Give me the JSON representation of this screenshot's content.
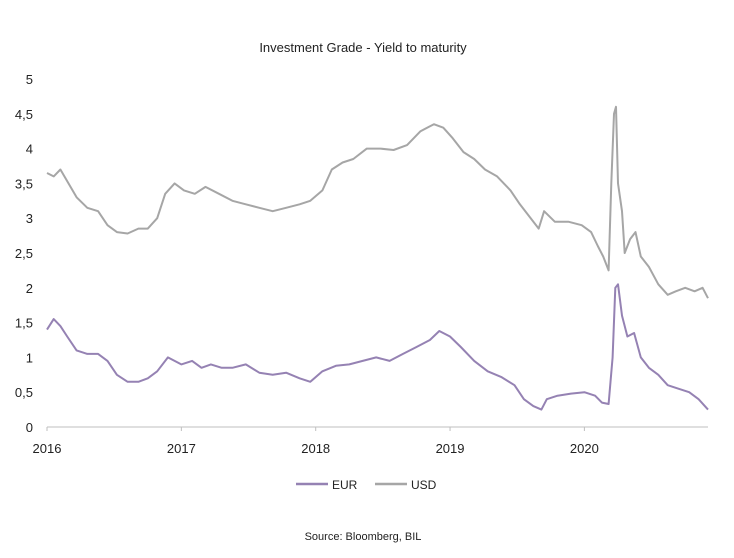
{
  "chart_data": {
    "type": "line",
    "title": "Investment Grade - Yield to maturity",
    "xlabel": "",
    "ylabel": "",
    "source": "Source: Bloomberg, BIL",
    "ylim": [
      0,
      5
    ],
    "xlim": [
      2016.0,
      2020.92
    ],
    "y_ticks": [
      "0",
      "0,5",
      "1",
      "1,5",
      "2",
      "2,5",
      "3",
      "3,5",
      "4",
      "4,5",
      "5"
    ],
    "x_ticks": [
      "2016",
      "2017",
      "2018",
      "2019",
      "2020"
    ],
    "grid": false,
    "legend": "bottom",
    "series": [
      {
        "name": "EUR",
        "color": "#9582b3",
        "points": [
          [
            2016.0,
            1.4
          ],
          [
            2016.05,
            1.55
          ],
          [
            2016.1,
            1.45
          ],
          [
            2016.15,
            1.3
          ],
          [
            2016.22,
            1.1
          ],
          [
            2016.3,
            1.05
          ],
          [
            2016.38,
            1.05
          ],
          [
            2016.45,
            0.95
          ],
          [
            2016.52,
            0.75
          ],
          [
            2016.6,
            0.65
          ],
          [
            2016.68,
            0.65
          ],
          [
            2016.75,
            0.7
          ],
          [
            2016.82,
            0.8
          ],
          [
            2016.9,
            1.0
          ],
          [
            2017.0,
            0.9
          ],
          [
            2017.08,
            0.95
          ],
          [
            2017.15,
            0.85
          ],
          [
            2017.22,
            0.9
          ],
          [
            2017.3,
            0.85
          ],
          [
            2017.38,
            0.85
          ],
          [
            2017.48,
            0.9
          ],
          [
            2017.58,
            0.78
          ],
          [
            2017.68,
            0.75
          ],
          [
            2017.78,
            0.78
          ],
          [
            2017.88,
            0.7
          ],
          [
            2017.96,
            0.65
          ],
          [
            2018.05,
            0.8
          ],
          [
            2018.15,
            0.88
          ],
          [
            2018.25,
            0.9
          ],
          [
            2018.35,
            0.95
          ],
          [
            2018.45,
            1.0
          ],
          [
            2018.55,
            0.95
          ],
          [
            2018.65,
            1.05
          ],
          [
            2018.75,
            1.15
          ],
          [
            2018.85,
            1.25
          ],
          [
            2018.92,
            1.38
          ],
          [
            2019.0,
            1.3
          ],
          [
            2019.08,
            1.15
          ],
          [
            2019.18,
            0.95
          ],
          [
            2019.28,
            0.8
          ],
          [
            2019.38,
            0.72
          ],
          [
            2019.48,
            0.6
          ],
          [
            2019.55,
            0.4
          ],
          [
            2019.62,
            0.3
          ],
          [
            2019.68,
            0.25
          ],
          [
            2019.72,
            0.4
          ],
          [
            2019.8,
            0.45
          ],
          [
            2019.9,
            0.48
          ],
          [
            2020.0,
            0.5
          ],
          [
            2020.08,
            0.45
          ],
          [
            2020.13,
            0.35
          ],
          [
            2020.18,
            0.33
          ],
          [
            2020.21,
            1.0
          ],
          [
            2020.23,
            2.0
          ],
          [
            2020.25,
            2.05
          ],
          [
            2020.28,
            1.6
          ],
          [
            2020.32,
            1.3
          ],
          [
            2020.37,
            1.35
          ],
          [
            2020.42,
            1.0
          ],
          [
            2020.48,
            0.85
          ],
          [
            2020.55,
            0.75
          ],
          [
            2020.62,
            0.6
          ],
          [
            2020.7,
            0.55
          ],
          [
            2020.78,
            0.5
          ],
          [
            2020.85,
            0.4
          ],
          [
            2020.92,
            0.25
          ]
        ]
      },
      {
        "name": "USD",
        "color": "#a6a6a6",
        "points": [
          [
            2016.0,
            3.65
          ],
          [
            2016.05,
            3.6
          ],
          [
            2016.1,
            3.7
          ],
          [
            2016.16,
            3.5
          ],
          [
            2016.22,
            3.3
          ],
          [
            2016.3,
            3.15
          ],
          [
            2016.38,
            3.1
          ],
          [
            2016.45,
            2.9
          ],
          [
            2016.52,
            2.8
          ],
          [
            2016.6,
            2.78
          ],
          [
            2016.68,
            2.85
          ],
          [
            2016.75,
            2.85
          ],
          [
            2016.82,
            3.0
          ],
          [
            2016.88,
            3.35
          ],
          [
            2016.95,
            3.5
          ],
          [
            2017.02,
            3.4
          ],
          [
            2017.1,
            3.35
          ],
          [
            2017.18,
            3.45
          ],
          [
            2017.28,
            3.35
          ],
          [
            2017.38,
            3.25
          ],
          [
            2017.48,
            3.2
          ],
          [
            2017.58,
            3.15
          ],
          [
            2017.68,
            3.1
          ],
          [
            2017.78,
            3.15
          ],
          [
            2017.88,
            3.2
          ],
          [
            2017.96,
            3.25
          ],
          [
            2018.05,
            3.4
          ],
          [
            2018.12,
            3.7
          ],
          [
            2018.2,
            3.8
          ],
          [
            2018.28,
            3.85
          ],
          [
            2018.38,
            4.0
          ],
          [
            2018.48,
            4.0
          ],
          [
            2018.58,
            3.98
          ],
          [
            2018.68,
            4.05
          ],
          [
            2018.78,
            4.25
          ],
          [
            2018.88,
            4.35
          ],
          [
            2018.95,
            4.3
          ],
          [
            2019.02,
            4.15
          ],
          [
            2019.1,
            3.95
          ],
          [
            2019.18,
            3.85
          ],
          [
            2019.26,
            3.7
          ],
          [
            2019.35,
            3.6
          ],
          [
            2019.45,
            3.4
          ],
          [
            2019.52,
            3.2
          ],
          [
            2019.6,
            3.0
          ],
          [
            2019.66,
            2.85
          ],
          [
            2019.7,
            3.1
          ],
          [
            2019.78,
            2.95
          ],
          [
            2019.88,
            2.95
          ],
          [
            2019.98,
            2.9
          ],
          [
            2020.05,
            2.8
          ],
          [
            2020.1,
            2.6
          ],
          [
            2020.14,
            2.45
          ],
          [
            2020.18,
            2.25
          ],
          [
            2020.2,
            3.5
          ],
          [
            2020.22,
            4.5
          ],
          [
            2020.235,
            4.6
          ],
          [
            2020.25,
            3.5
          ],
          [
            2020.28,
            3.1
          ],
          [
            2020.3,
            2.5
          ],
          [
            2020.34,
            2.7
          ],
          [
            2020.38,
            2.8
          ],
          [
            2020.42,
            2.45
          ],
          [
            2020.48,
            2.3
          ],
          [
            2020.55,
            2.05
          ],
          [
            2020.62,
            1.9
          ],
          [
            2020.68,
            1.95
          ],
          [
            2020.75,
            2.0
          ],
          [
            2020.82,
            1.95
          ],
          [
            2020.88,
            2.0
          ],
          [
            2020.92,
            1.85
          ]
        ]
      }
    ]
  }
}
